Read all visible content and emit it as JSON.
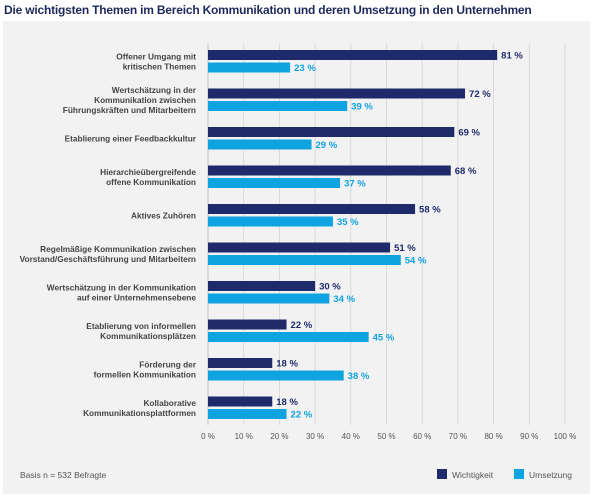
{
  "chart_data": {
    "type": "bar",
    "orientation": "horizontal",
    "title": "Die wichtigsten Themen im Bereich Kommunikation und deren Umsetzung in den Unternehmen",
    "categories": [
      [
        "Offener Umgang mit",
        "kritischen Themen"
      ],
      [
        "Wertschätzung in der",
        "Kommunikation zwischen",
        "Führungskräften und Mitarbeitern"
      ],
      [
        "Etablierung einer Feedbackkultur"
      ],
      [
        "Hierarchieübergreifende",
        "offene Kommunikation"
      ],
      [
        "Aktives Zuhören"
      ],
      [
        "Regelmäßige Kommunikation zwischen",
        "Vorstand/Geschäftsführung und Mitarbeitern"
      ],
      [
        "Wertschätzung in der Kommunikation",
        "auf einer Unternehmensebene"
      ],
      [
        "Etablierung von informellen",
        "Kommunikationsplätzen"
      ],
      [
        "Förderung der",
        "formellen Kommunikation"
      ],
      [
        "Kollaborative",
        "Kommunikationsplattformen"
      ]
    ],
    "series": [
      {
        "name": "Wichtigkeit",
        "color": "#1f2a6b",
        "labelColor": "#1f2a6b",
        "values": [
          81,
          72,
          69,
          68,
          58,
          51,
          30,
          22,
          18,
          18
        ],
        "labels": [
          "81 %",
          "72 %",
          "69 %",
          "68 %",
          "58 %",
          "51 %",
          "30 %",
          "22 %",
          "18 %",
          "18 %"
        ]
      },
      {
        "name": "Umsetzung",
        "color": "#0fa3e0",
        "labelColor": "#0fa3e0",
        "values": [
          23,
          39,
          29,
          37,
          35,
          54,
          34,
          45,
          38,
          22
        ],
        "labels": [
          "23 %",
          "39 %",
          "29 %",
          "37 %",
          "35 %",
          "54 %",
          "34 %",
          "45 %",
          "38 %",
          "22 %"
        ]
      }
    ],
    "xlim": [
      0,
      100
    ],
    "ticks": [
      0,
      10,
      20,
      30,
      40,
      50,
      60,
      70,
      80,
      90,
      100
    ],
    "tick_labels": [
      "0 %",
      "10 %",
      "20 %",
      "30 %",
      "40 %",
      "50 %",
      "60 %",
      "70 %",
      "80 %",
      "90 %",
      "100 %"
    ],
    "grid": true,
    "legend_position": "bottom-right",
    "footnote": "Basis n = 532 Befragte"
  }
}
